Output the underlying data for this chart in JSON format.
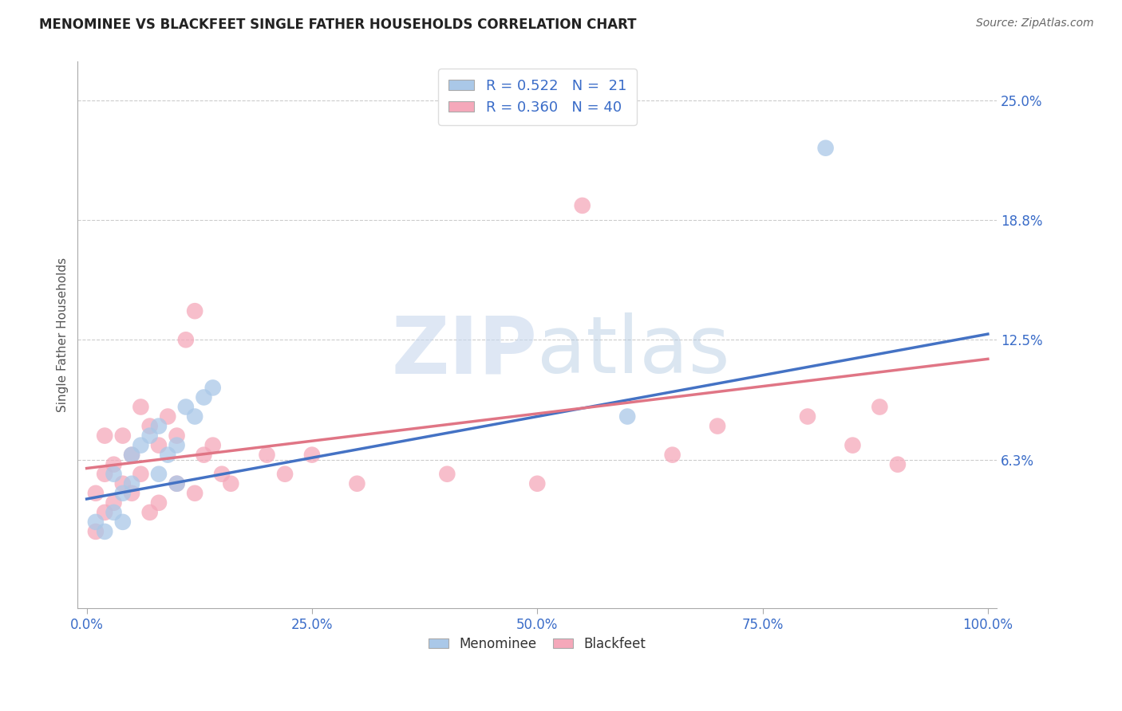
{
  "title": "MENOMINEE VS BLACKFEET SINGLE FATHER HOUSEHOLDS CORRELATION CHART",
  "source": "Source: ZipAtlas.com",
  "ylabel": "Single Father Households",
  "xlim": [
    -1,
    101
  ],
  "ylim": [
    -1.5,
    27
  ],
  "ytick_vals": [
    6.25,
    12.5,
    18.75,
    25.0
  ],
  "ytick_labels": [
    "6.3%",
    "12.5%",
    "18.8%",
    "25.0%"
  ],
  "xtick_vals": [
    0,
    25,
    50,
    75,
    100
  ],
  "xtick_labels": [
    "0.0%",
    "25.0%",
    "50.0%",
    "75.0%",
    "100.0%"
  ],
  "menominee_R": 0.522,
  "menominee_N": 21,
  "blackfeet_R": 0.36,
  "blackfeet_N": 40,
  "menominee_color": "#aac8e8",
  "blackfeet_color": "#f5a8ba",
  "menominee_line_color": "#4472c4",
  "blackfeet_line_color": "#e07585",
  "grid_color": "#cccccc",
  "watermark_zip": "ZIP",
  "watermark_atlas": "atlas",
  "menominee_x": [
    1,
    2,
    3,
    3,
    4,
    4,
    5,
    5,
    6,
    7,
    8,
    8,
    9,
    10,
    10,
    11,
    12,
    13,
    14,
    60,
    82
  ],
  "menominee_y": [
    3.0,
    2.5,
    3.5,
    5.5,
    3.0,
    4.5,
    5.0,
    6.5,
    7.0,
    7.5,
    5.5,
    8.0,
    6.5,
    5.0,
    7.0,
    9.0,
    8.5,
    9.5,
    10.0,
    8.5,
    22.5
  ],
  "blackfeet_x": [
    1,
    1,
    2,
    2,
    2,
    3,
    3,
    4,
    4,
    5,
    5,
    6,
    6,
    7,
    7,
    8,
    8,
    9,
    10,
    10,
    11,
    12,
    12,
    13,
    14,
    15,
    16,
    20,
    22,
    25,
    30,
    40,
    50,
    55,
    65,
    70,
    80,
    85,
    88,
    90
  ],
  "blackfeet_y": [
    2.5,
    4.5,
    3.5,
    5.5,
    7.5,
    4.0,
    6.0,
    5.0,
    7.5,
    4.5,
    6.5,
    5.5,
    9.0,
    3.5,
    8.0,
    4.0,
    7.0,
    8.5,
    5.0,
    7.5,
    12.5,
    4.5,
    14.0,
    6.5,
    7.0,
    5.5,
    5.0,
    6.5,
    5.5,
    6.5,
    5.0,
    5.5,
    5.0,
    19.5,
    6.5,
    8.0,
    8.5,
    7.0,
    9.0,
    6.0
  ],
  "blue_line_x0": 0,
  "blue_line_y0": 4.2,
  "blue_line_x1": 100,
  "blue_line_y1": 12.8,
  "pink_line_x0": 0,
  "pink_line_y0": 5.8,
  "pink_line_x1": 100,
  "pink_line_y1": 11.5
}
